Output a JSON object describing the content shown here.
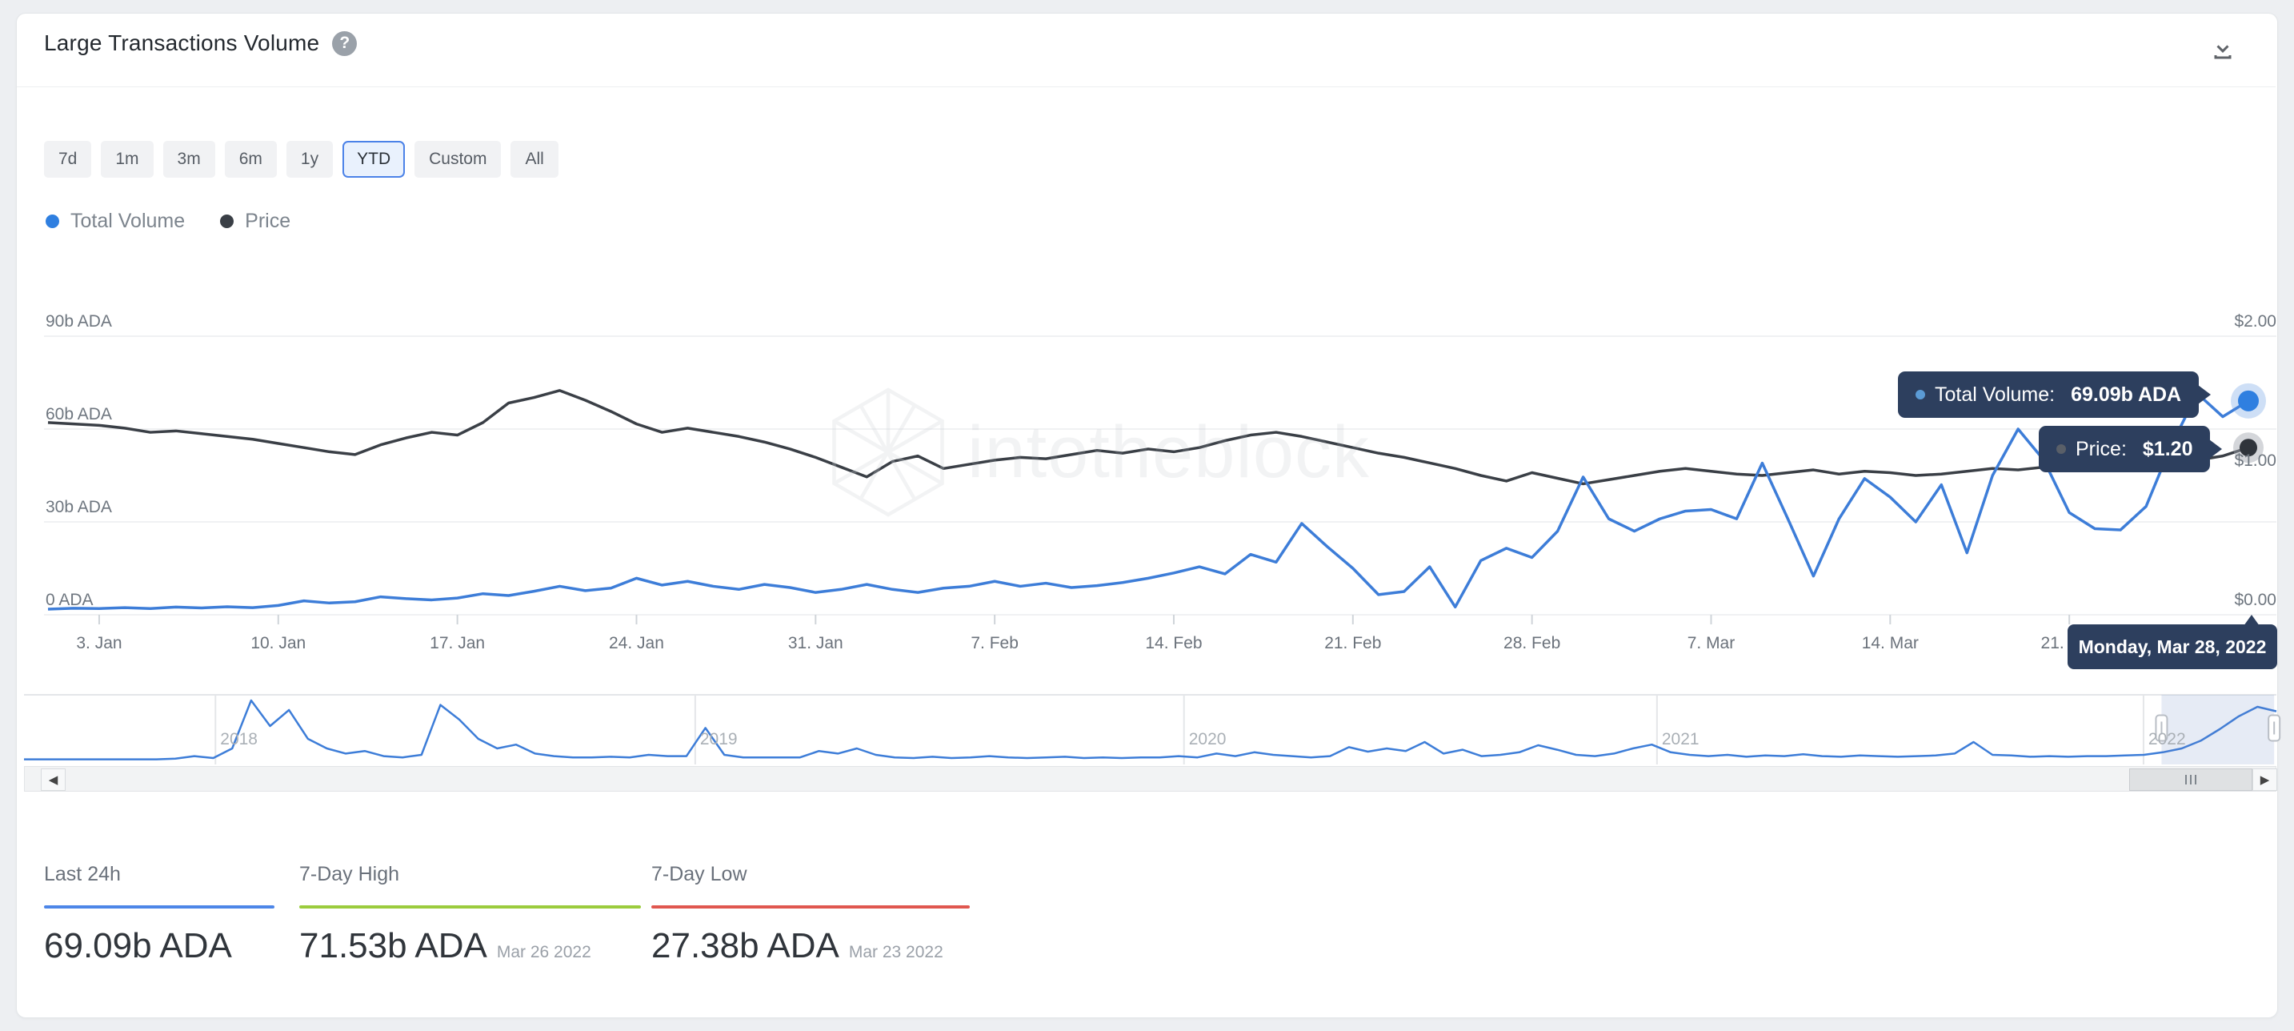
{
  "header": {
    "title": "Large Transactions Volume",
    "help_icon": "?",
    "download_icon": "download"
  },
  "toolbar": {
    "ranges": [
      "7d",
      "1m",
      "3m",
      "6m",
      "1y",
      "YTD",
      "Custom",
      "All"
    ],
    "selected": "YTD"
  },
  "legend": [
    {
      "label": "Total Volume",
      "color": "#2f7fe0"
    },
    {
      "label": "Price",
      "color": "#3a3f46"
    }
  ],
  "chart_data": {
    "type": "line",
    "title": "Large Transactions Volume",
    "interval": "daily",
    "start_date": "2022-01-01",
    "end_date": "2022-03-28",
    "x_tick_labels": [
      "3. Jan",
      "10. Jan",
      "17. Jan",
      "24. Jan",
      "31. Jan",
      "7. Feb",
      "14. Feb",
      "21. Feb",
      "28. Feb",
      "7. Mar",
      "14. Mar",
      "21. Mar"
    ],
    "x_tick_day_indices": [
      2,
      9,
      16,
      23,
      30,
      37,
      44,
      51,
      58,
      65,
      72,
      79
    ],
    "left_axis": {
      "labels": [
        "90b ADA",
        "60b ADA",
        "30b ADA",
        "0 ADA"
      ],
      "min": 0,
      "max": 90,
      "unit": "b ADA"
    },
    "right_axis": {
      "labels": [
        "$2.00",
        "$1.00",
        "$0.00"
      ],
      "min": 0,
      "max": 2,
      "unit": "USD"
    },
    "grid": true,
    "legend_position": "top-left",
    "series": [
      {
        "name": "Total Volume",
        "axis": "left",
        "color": "#3d7dd8",
        "values": [
          1.8,
          2.1,
          2.0,
          2.3,
          2.0,
          2.5,
          2.2,
          2.6,
          2.3,
          3.0,
          4.5,
          3.8,
          4.2,
          5.8,
          5.2,
          4.8,
          5.4,
          6.8,
          6.2,
          7.6,
          9.2,
          7.8,
          8.6,
          11.8,
          9.6,
          10.8,
          9.2,
          8.2,
          9.8,
          8.8,
          7.2,
          8.2,
          9.8,
          8.2,
          7.2,
          8.6,
          9.2,
          10.8,
          9.2,
          10.2,
          8.8,
          9.4,
          10.4,
          11.8,
          13.5,
          15.5,
          13.2,
          19.5,
          17.0,
          29.5,
          22.0,
          15.0,
          6.5,
          7.5,
          15.5,
          2.5,
          17.5,
          21.5,
          18.5,
          27.0,
          44.5,
          31.0,
          27.0,
          31.0,
          33.5,
          34.0,
          31.0,
          49.0,
          31.0,
          12.5,
          31.0,
          44.0,
          38.0,
          30.0,
          42.0,
          20.0,
          45.0,
          60.0,
          50.0,
          33.0,
          27.8,
          27.4,
          35.0,
          55.0,
          71.5,
          64.0,
          69.1
        ]
      },
      {
        "name": "Price",
        "axis": "right",
        "color": "#3a3f46",
        "values": [
          1.38,
          1.37,
          1.36,
          1.34,
          1.31,
          1.32,
          1.3,
          1.28,
          1.26,
          1.23,
          1.2,
          1.17,
          1.15,
          1.22,
          1.27,
          1.31,
          1.29,
          1.38,
          1.52,
          1.56,
          1.61,
          1.54,
          1.46,
          1.37,
          1.31,
          1.34,
          1.31,
          1.28,
          1.24,
          1.19,
          1.13,
          1.06,
          0.99,
          1.1,
          1.14,
          1.05,
          1.08,
          1.11,
          1.13,
          1.12,
          1.15,
          1.18,
          1.16,
          1.19,
          1.17,
          1.2,
          1.25,
          1.29,
          1.31,
          1.28,
          1.24,
          1.2,
          1.16,
          1.13,
          1.09,
          1.05,
          1.0,
          0.96,
          1.02,
          0.98,
          0.94,
          0.97,
          1.0,
          1.03,
          1.05,
          1.03,
          1.01,
          1.0,
          1.02,
          1.04,
          1.01,
          1.03,
          1.02,
          1.0,
          1.01,
          1.03,
          1.05,
          1.04,
          1.06,
          1.08,
          1.07,
          1.05,
          1.07,
          1.09,
          1.11,
          1.14,
          1.2
        ]
      }
    ],
    "watermark": "intotheblock",
    "navigator": {
      "year_labels": [
        "2018",
        "2019",
        "2020",
        "2021",
        "2022"
      ],
      "year_fractions": [
        0.085,
        0.298,
        0.515,
        0.725,
        0.941
      ],
      "selected_range": [
        0.949,
        0.999
      ],
      "values": [
        3,
        3,
        3,
        3,
        3,
        3,
        3,
        3,
        4,
        8,
        5,
        20,
        95,
        55,
        80,
        35,
        20,
        12,
        16,
        8,
        6,
        10,
        88,
        65,
        35,
        20,
        26,
        12,
        8,
        6,
        6,
        7,
        6,
        10,
        8,
        8,
        52,
        10,
        6,
        6,
        6,
        6,
        16,
        12,
        20,
        10,
        6,
        5,
        7,
        5,
        6,
        8,
        6,
        5,
        6,
        7,
        5,
        6,
        5,
        6,
        6,
        8,
        6,
        12,
        8,
        14,
        10,
        8,
        6,
        8,
        22,
        15,
        20,
        16,
        30,
        12,
        18,
        8,
        10,
        14,
        25,
        18,
        10,
        8,
        12,
        20,
        26,
        14,
        10,
        8,
        10,
        7,
        9,
        8,
        11,
        8,
        7,
        9,
        8,
        7,
        8,
        9,
        12,
        30,
        10,
        9,
        7,
        8,
        7,
        8,
        8,
        9,
        10,
        14,
        20,
        32,
        50,
        70,
        85,
        78
      ]
    }
  },
  "tooltips": {
    "volume": {
      "label": "Total Volume:",
      "value": "69.09b ADA"
    },
    "price": {
      "label": "Price:",
      "value": "$1.20"
    },
    "date": "Monday, Mar 28, 2022"
  },
  "stats": [
    {
      "label": "Last 24h",
      "value": "69.09b ADA",
      "date": "",
      "color": "#4d86e8"
    },
    {
      "label": "7-Day High",
      "value": "71.53b ADA",
      "date": "Mar 26 2022",
      "color": "#9bcc3d"
    },
    {
      "label": "7-Day Low",
      "value": "27.38b ADA",
      "date": "Mar 23 2022",
      "color": "#e0574f"
    }
  ],
  "colors": {
    "accent_blue": "#4b82e8",
    "volume_line": "#3d7dd8",
    "volume_marker": "#2f7fe0",
    "price_line": "#3a3f46",
    "tooltip_bg": "#2d3f5e",
    "grid_line": "#f0f1f3",
    "navigator_window": "rgba(102,133,194,0.16)"
  }
}
